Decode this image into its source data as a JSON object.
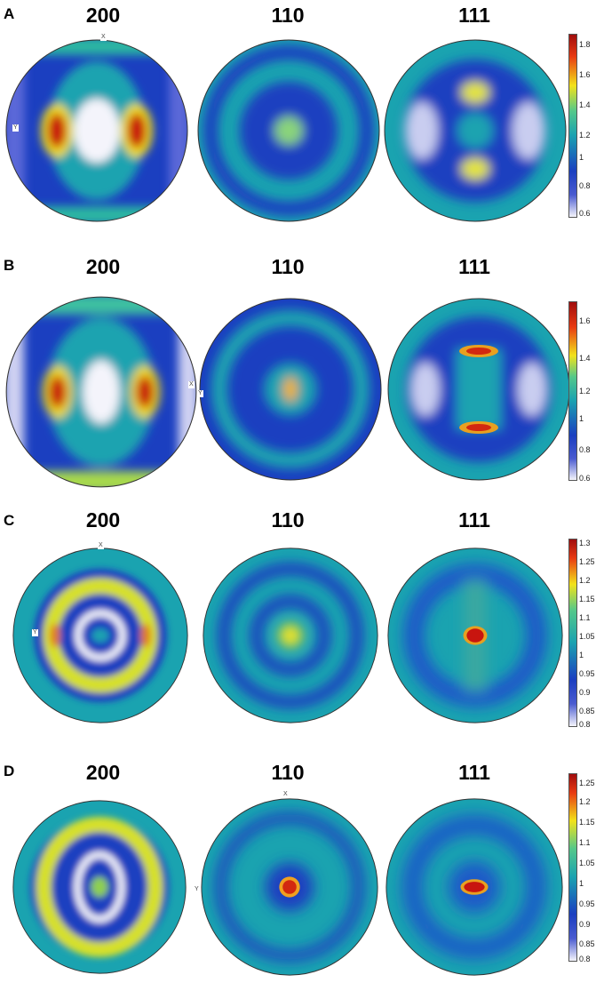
{
  "panels": [
    {
      "letter": "A",
      "titles": [
        "200",
        "110",
        "111"
      ],
      "colorbar_ticks": [
        "1.8",
        "1.6",
        "1.4",
        "1.2",
        "1",
        "0.8",
        "0.6"
      ],
      "pole_marks": [
        "X",
        "Y"
      ]
    },
    {
      "letter": "B",
      "titles": [
        "200",
        "110",
        "111"
      ],
      "colorbar_ticks": [
        "1.6",
        "1.4",
        "1.2",
        "1",
        "0.8",
        "0.6"
      ],
      "pole_marks": [
        "X",
        "Y"
      ]
    },
    {
      "letter": "C",
      "titles": [
        "200",
        "110",
        "111"
      ],
      "colorbar_ticks": [
        "1.3",
        "1.25",
        "1.2",
        "1.15",
        "1.1",
        "1.05",
        "1",
        "0.95",
        "0.9",
        "0.85",
        "0.8"
      ],
      "pole_marks": [
        "X",
        "Y"
      ]
    },
    {
      "letter": "D",
      "titles": [
        "200",
        "110",
        "111"
      ],
      "colorbar_ticks": [
        "1.25",
        "1.2",
        "1.15",
        "1.1",
        "1.05",
        "1",
        "0.95",
        "0.9",
        "0.85",
        "0.8"
      ],
      "pole_marks": [
        "X",
        "Y"
      ]
    }
  ],
  "colors": {
    "min": "#f4f4fb",
    "low": "#1b2fb0",
    "mid": "#1aa3b0",
    "high": "#f2e21a",
    "max": "#c8150f",
    "rim": "#33c28f"
  }
}
